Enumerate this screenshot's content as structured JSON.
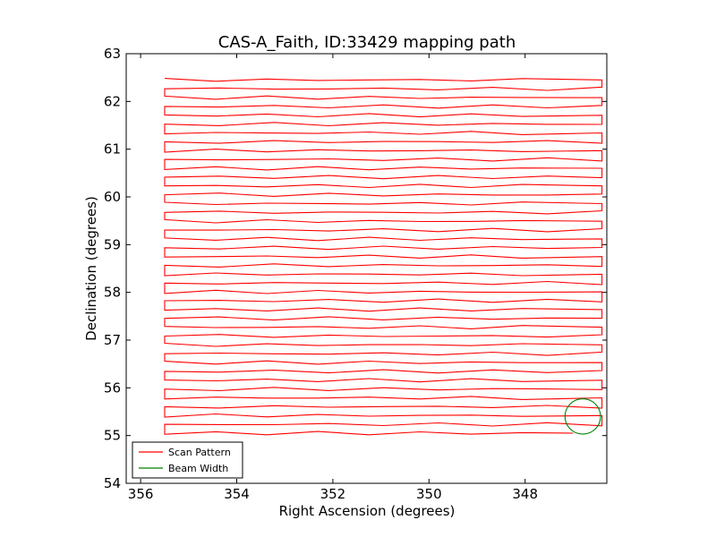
{
  "chart_data": {
    "type": "line",
    "title": "CAS-A_Faith, ID:33429 mapping path",
    "xlabel": "Right Ascension (degrees)",
    "ylabel": "Declination (degrees)",
    "xlim": [
      356.3,
      346.3
    ],
    "ylim": [
      54,
      63
    ],
    "xticks": [
      356,
      354,
      352,
      350,
      348
    ],
    "yticks": [
      54,
      55,
      56,
      57,
      58,
      59,
      60,
      61,
      62,
      63
    ],
    "grid": false,
    "legend": {
      "placement": "lower-left",
      "entries": [
        {
          "label": "Scan Pattern",
          "color": "#ff0000"
        },
        {
          "label": "Beam Width",
          "color": "#008000"
        }
      ]
    },
    "series": [
      {
        "name": "Scan Pattern",
        "color": "#ff0000",
        "path": {
          "ra_left": 355.5,
          "ra_right": 346.4,
          "dec_start": 55.05,
          "dec_end": 62.58,
          "row_spacing": 0.37
        }
      },
      {
        "name": "Beam Width",
        "color": "#008000",
        "circle": {
          "ra": 346.8,
          "dec": 55.4,
          "radius_deg": 0.37
        }
      }
    ]
  }
}
